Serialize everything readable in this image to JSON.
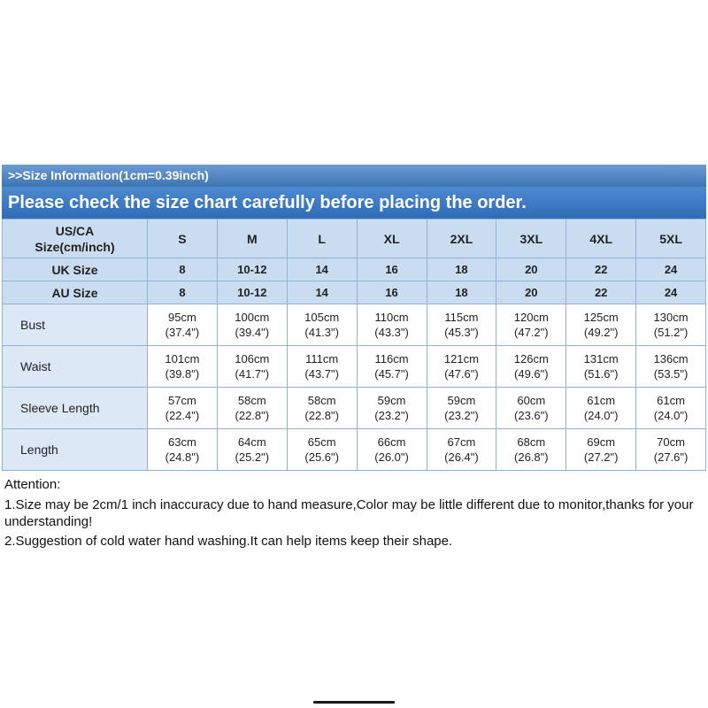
{
  "header": {
    "size_info": ">>Size Information(1cm=0.39inch)",
    "notice": "Please check the size chart carefully before placing the order."
  },
  "size_table": {
    "corner_label_lines": [
      "US/CA",
      "Size(cm/inch)"
    ],
    "size_columns": [
      "S",
      "M",
      "L",
      "XL",
      "2XL",
      "3XL",
      "4XL",
      "5XL"
    ],
    "rows": [
      {
        "label": "UK Size",
        "type": "size",
        "values": [
          "8",
          "10-12",
          "14",
          "16",
          "18",
          "20",
          "22",
          "24"
        ]
      },
      {
        "label": "AU Size",
        "type": "size",
        "values": [
          "8",
          "10-12",
          "14",
          "16",
          "18",
          "20",
          "22",
          "24"
        ]
      },
      {
        "label": "Bust",
        "type": "measure",
        "cm": [
          "95cm",
          "100cm",
          "105cm",
          "110cm",
          "115cm",
          "120cm",
          "125cm",
          "130cm"
        ],
        "inch": [
          "(37.4\")",
          "(39.4\")",
          "(41.3\")",
          "(43.3\")",
          "(45.3\")",
          "(47.2\")",
          "(49.2\")",
          "(51.2\")"
        ]
      },
      {
        "label": "Waist",
        "type": "measure",
        "cm": [
          "101cm",
          "106cm",
          "111cm",
          "116cm",
          "121cm",
          "126cm",
          "131cm",
          "136cm"
        ],
        "inch": [
          "(39.8\")",
          "(41.7\")",
          "(43.7\")",
          "(45.7\")",
          "(47.6\")",
          "(49.6\")",
          "(51.6\")",
          "(53.5\")"
        ]
      },
      {
        "label": "Sleeve Length",
        "type": "measure",
        "cm": [
          "57cm",
          "58cm",
          "58cm",
          "59cm",
          "59cm",
          "60cm",
          "61cm",
          "61cm"
        ],
        "inch": [
          "(22.4\")",
          "(22.8\")",
          "(22.8\")",
          "(23.2\")",
          "(23.2\")",
          "(23.6\")",
          "(24.0\")",
          "(24.0\")"
        ]
      },
      {
        "label": "Length",
        "type": "measure",
        "cm": [
          "63cm",
          "64cm",
          "65cm",
          "66cm",
          "67cm",
          "68cm",
          "69cm",
          "70cm"
        ],
        "inch": [
          "(24.8\")",
          "(25.2\")",
          "(25.6\")",
          "(26.0\")",
          "(26.4\")",
          "(26.8\")",
          "(27.2\")",
          "(27.6\")"
        ]
      }
    ]
  },
  "attention": {
    "heading": "Attention:",
    "note1": "1.Size may be 2cm/1 inch inaccuracy due to hand measure,Color may be little different due to monitor,thanks for your understanding!",
    "note2": "2.Suggestion of cold water hand washing.It can help items keep their shape."
  },
  "colors": {
    "bar_blue_top": "#4d89cf",
    "bar_blue_bottom": "#2f6db5",
    "table_header_bg": "#cadcf0",
    "label_column_bg": "#dce8f6",
    "table_border": "#8fb2d5"
  }
}
